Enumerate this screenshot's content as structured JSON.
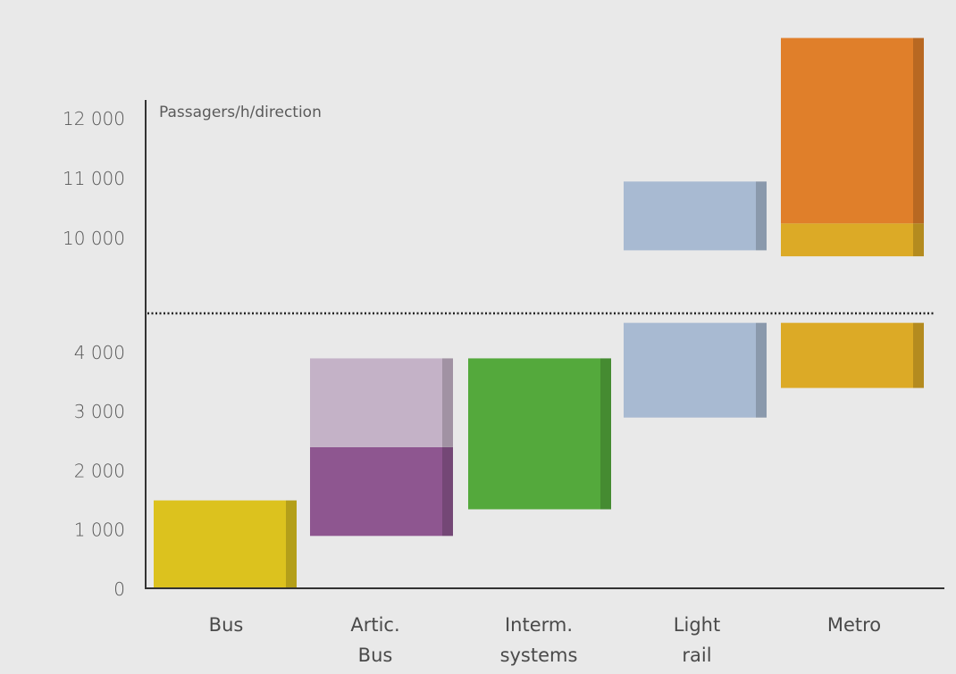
{
  "chart_data": {
    "type": "bar",
    "subtype": "floating-range (broken y-axis)",
    "ylabel": "Passagers/h/direction",
    "y_ticks": [
      "0",
      "1 000",
      "2 000",
      "3 000",
      "4 000",
      "10 000",
      "11 000",
      "12 000"
    ],
    "y_axis_break": "dotted line between 4 000 and 10 000",
    "categories": [
      {
        "label_lines": [
          "Bus"
        ]
      },
      {
        "label_lines": [
          "Artic.",
          "Bus"
        ]
      },
      {
        "label_lines": [
          "Interm.",
          "systems"
        ]
      },
      {
        "label_lines": [
          "Light",
          "rail"
        ]
      },
      {
        "label_lines": [
          "Metro"
        ]
      }
    ],
    "ranges": [
      {
        "category": "Bus",
        "from": 0,
        "to": 1500,
        "color": "#dcc21e"
      },
      {
        "category": "Artic. Bus",
        "from": 900,
        "to": 2400,
        "color": "#8e5690"
      },
      {
        "category": "Artic. Bus",
        "from": 2400,
        "to": 3900,
        "color": "#c4b2c7"
      },
      {
        "category": "Interm. systems",
        "from": 1350,
        "to": 3900,
        "color": "#54a93c"
      },
      {
        "category": "Light rail",
        "from": 2900,
        "to": 4500,
        "color": "#a8bad2"
      },
      {
        "category": "Light rail",
        "from": 9800,
        "to": 10950,
        "color": "#a8bad2"
      },
      {
        "category": "Metro",
        "from": 3400,
        "to": 4500,
        "color": "#dcaa26"
      },
      {
        "category": "Metro",
        "from": 9700,
        "to": 10250,
        "color": "#dcaa26"
      },
      {
        "category": "Metro",
        "from": 10250,
        "to": 13350,
        "color": "#e07f2a"
      }
    ],
    "grid": false,
    "legend": "none"
  }
}
